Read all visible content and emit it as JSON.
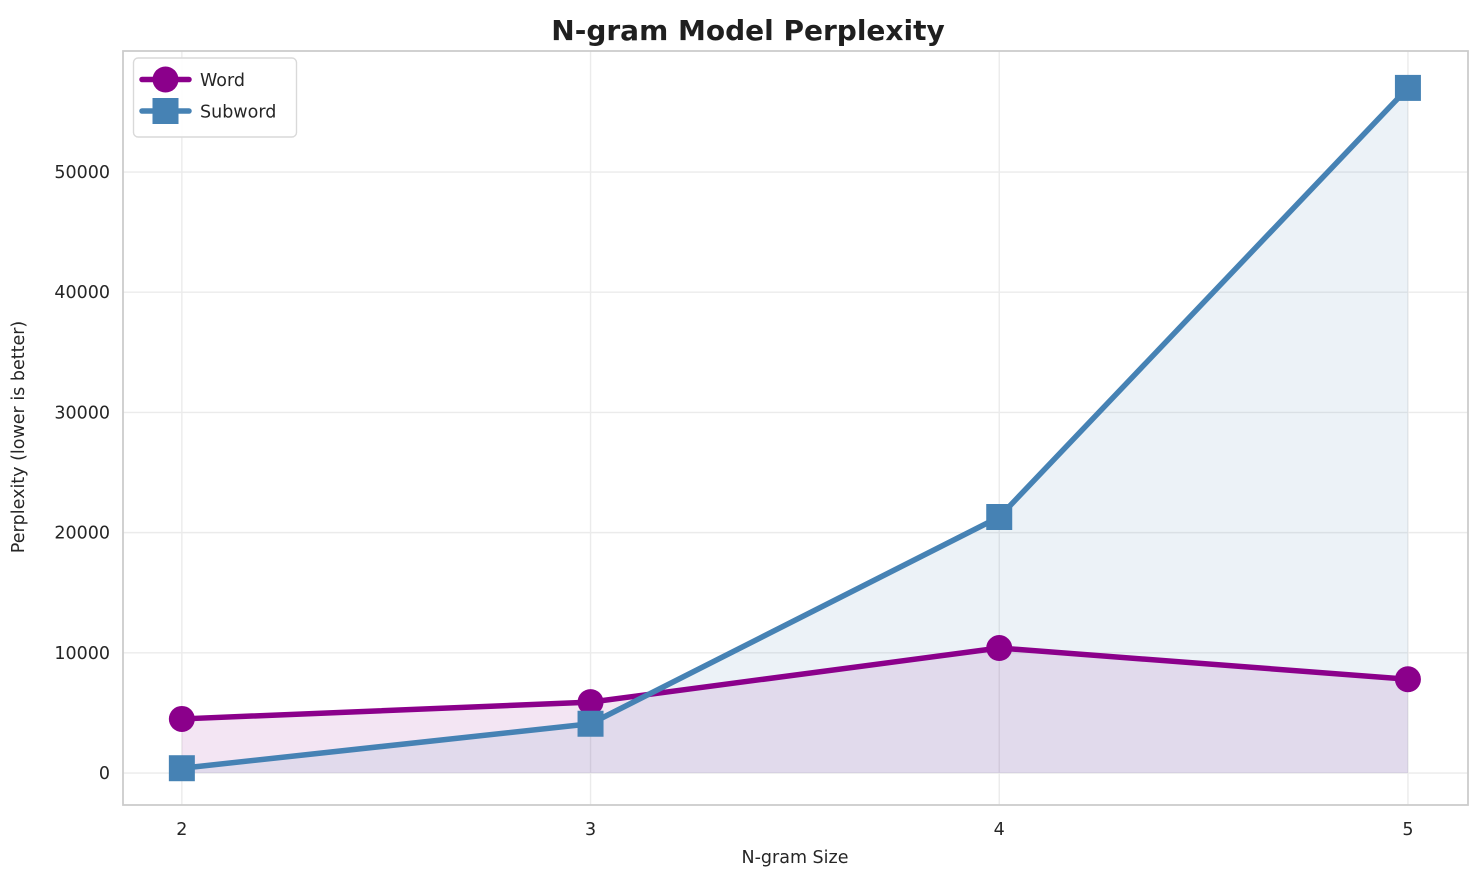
{
  "chart_data": {
    "type": "line",
    "title": "N-gram Model Perplexity",
    "xlabel": "N-gram Size",
    "ylabel": "Perplexity (lower is better)",
    "x": [
      2,
      3,
      4,
      5
    ],
    "xticks": [
      2,
      3,
      4,
      5
    ],
    "yticks": [
      0,
      10000,
      20000,
      30000,
      40000,
      50000
    ],
    "xlim": [
      1.856,
      5.147
    ],
    "ylim": [
      -2660,
      60070
    ],
    "grid": true,
    "grid_color": "#ebebeb",
    "spine_color": "#cccccc",
    "background": "#ffffff",
    "legend_position": "upper left",
    "series": [
      {
        "name": "Word",
        "color": "#8b008b",
        "marker": "circle",
        "fill_opacity": 0.1,
        "values": [
          4500,
          5900,
          10400,
          7800
        ]
      },
      {
        "name": "Subword",
        "color": "#4682b4",
        "marker": "square",
        "fill_opacity": 0.1,
        "values": [
          400,
          4100,
          21300,
          57000
        ]
      }
    ]
  }
}
